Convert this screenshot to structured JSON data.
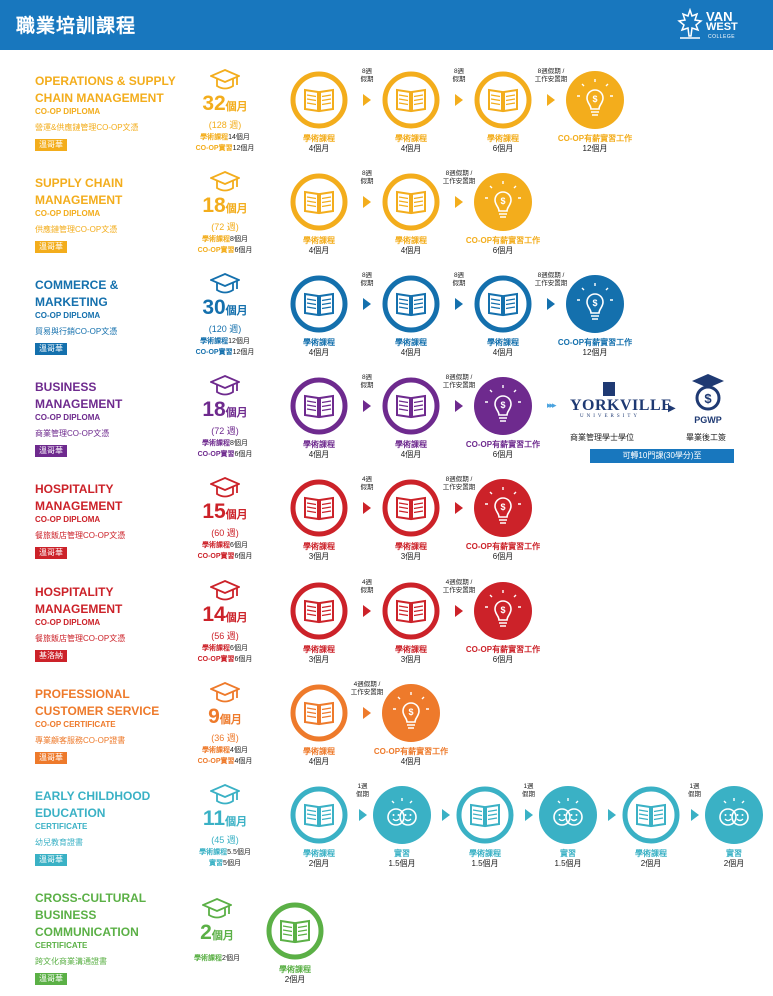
{
  "header": {
    "title": "職業培訓課程"
  },
  "logo": {
    "line1": "VAN",
    "line2": "WEST",
    "line3": "COLLEGE"
  },
  "programs": [
    {
      "name": "OPERATIONS & SUPPLY CHAIN MANAGEMENT",
      "sub1": "CO-OP DIPLOMA",
      "sub2": "營運&供應鏈管理CO-OP文憑",
      "location": "溫哥華",
      "color": "#f3ad1c",
      "months_num": "32",
      "months_unit": "個月",
      "weeks": "(128 週)",
      "split": [
        [
          "學術課程",
          "14個月"
        ],
        [
          "CO-OP實習",
          "12個月"
        ]
      ],
      "nodes": [
        {
          "type": "book",
          "label": "學術課程",
          "dur": "4個月"
        },
        {
          "type": "book",
          "label": "學術課程",
          "dur": "4個月"
        },
        {
          "type": "book",
          "label": "學術課程",
          "dur": "6個月"
        },
        {
          "type": "bulb",
          "label": "CO-OP有薪實習工作",
          "dur": "12個月"
        }
      ],
      "breaks": [
        "8週\n假期",
        "8週\n假期",
        "8週假期 /\n工作安置期"
      ]
    },
    {
      "name": "SUPPLY CHAIN MANAGEMENT",
      "sub1": "CO-OP DIPLOMA",
      "sub2": "供應鏈管理CO-OP文憑",
      "location": "溫哥華",
      "color": "#f3ad1c",
      "months_num": "18",
      "months_unit": "個月",
      "weeks": "(72 週)",
      "split": [
        [
          "學術課程",
          "8個月"
        ],
        [
          "CO-OP實習",
          "6個月"
        ]
      ],
      "nodes": [
        {
          "type": "book",
          "label": "學術課程",
          "dur": "4個月"
        },
        {
          "type": "book",
          "label": "學術課程",
          "dur": "4個月"
        },
        {
          "type": "bulb",
          "label": "CO-OP有薪實習工作",
          "dur": "6個月"
        }
      ],
      "breaks": [
        "8週\n假期",
        "8週假期 /\n工作安置期"
      ]
    },
    {
      "name": "COMMERCE & MARKETING",
      "sub1": "CO-OP DIPLOMA",
      "sub2": "貿易與行銷CO-OP文憑",
      "location": "溫哥華",
      "color": "#1470ad",
      "months_num": "30",
      "months_unit": "個月",
      "weeks": "(120 週)",
      "split": [
        [
          "學術課程",
          "12個月"
        ],
        [
          "CO-OP實習",
          "12個月"
        ]
      ],
      "nodes": [
        {
          "type": "book",
          "label": "學術課程",
          "dur": "4個月"
        },
        {
          "type": "book",
          "label": "學術課程",
          "dur": "4個月"
        },
        {
          "type": "book",
          "label": "學術課程",
          "dur": "4個月"
        },
        {
          "type": "bulb",
          "label": "CO-OP有薪實習工作",
          "dur": "12個月"
        }
      ],
      "breaks": [
        "8週\n假期",
        "8週\n假期",
        "8週假期 /\n工作安置期"
      ]
    },
    {
      "name": "BUSINESS MANAGEMENT",
      "sub1": "CO-OP DIPLOMA",
      "sub2": "商業管理CO-OP文憑",
      "location": "溫哥華",
      "color": "#6e2a8e",
      "months_num": "18",
      "months_unit": "個月",
      "weeks": "(72 週)",
      "split": [
        [
          "學術課程",
          "8個月"
        ],
        [
          "CO-OP實習",
          "6個月"
        ]
      ],
      "nodes": [
        {
          "type": "book",
          "label": "學術課程",
          "dur": "4個月"
        },
        {
          "type": "book",
          "label": "學術課程",
          "dur": "4個月"
        },
        {
          "type": "bulb",
          "label": "CO-OP有薪實習工作",
          "dur": "6個月"
        }
      ],
      "breaks": [
        "8週\n假期",
        "8週假期 /\n工作安置期"
      ]
    },
    {
      "name": "HOSPITALITY MANAGEMENT",
      "sub1": "CO-OP DIPLOMA",
      "sub2": "餐旅飯店管理CO-OP文憑",
      "location": "溫哥華",
      "color": "#cc2229",
      "months_num": "15",
      "months_unit": "個月",
      "weeks": "(60 週)",
      "split": [
        [
          "學術課程",
          "6個月"
        ],
        [
          "CO-OP實習",
          "6個月"
        ]
      ],
      "nodes": [
        {
          "type": "book",
          "label": "學術課程",
          "dur": "3個月"
        },
        {
          "type": "book",
          "label": "學術課程",
          "dur": "3個月"
        },
        {
          "type": "bulb",
          "label": "CO-OP有薪實習工作",
          "dur": "6個月"
        }
      ],
      "breaks": [
        "4週\n假期",
        "8週假期 /\n工作安置期"
      ]
    },
    {
      "name": "HOSPITALITY MANAGEMENT",
      "sub1": "CO-OP DIPLOMA",
      "sub2": "餐旅飯店管理CO-OP文憑",
      "location": "基洛納",
      "color": "#cc2229",
      "months_num": "14",
      "months_unit": "個月",
      "weeks": "(56 週)",
      "split": [
        [
          "學術課程",
          "6個月"
        ],
        [
          "CO-OP實習",
          "6個月"
        ]
      ],
      "nodes": [
        {
          "type": "book",
          "label": "學術課程",
          "dur": "3個月"
        },
        {
          "type": "book",
          "label": "學術課程",
          "dur": "3個月"
        },
        {
          "type": "bulb",
          "label": "CO-OP有薪實習工作",
          "dur": "6個月"
        }
      ],
      "breaks": [
        "4週\n假期",
        "4週假期 /\n工作安置期"
      ]
    },
    {
      "name": "PROFESSIONAL CUSTOMER SERVICE",
      "sub1": "CO-OP CERTIFICATE",
      "sub2": "專業顧客服務CO-OP證書",
      "location": "溫哥華",
      "color": "#ee7a2b",
      "months_num": "9",
      "months_unit": "個月",
      "weeks": "(36 週)",
      "split": [
        [
          "學術課程",
          "4個月"
        ],
        [
          "CO-OP實習",
          "4個月"
        ]
      ],
      "nodes": [
        {
          "type": "book",
          "label": "學術課程",
          "dur": "4個月"
        },
        {
          "type": "bulb",
          "label": "CO-OP有薪實習工作",
          "dur": "4個月"
        }
      ],
      "breaks": [
        "4週假期 /\n工作安置期"
      ]
    },
    {
      "name": "EARLY CHILDHOOD EDUCATION",
      "sub1": "CERTIFICATE",
      "sub2": "幼兒教育證書",
      "location": "溫哥華",
      "color": "#3ab1c5",
      "months_num": "11",
      "months_unit": "個月",
      "weeks": "(45 週)",
      "split": [
        [
          "學術課程",
          "5.5個月"
        ],
        [
          "實習",
          "5個月"
        ]
      ],
      "nodes": [
        {
          "type": "book",
          "label": "學術課程",
          "dur": "2個月"
        },
        {
          "type": "smile",
          "label": "實習",
          "dur": "1.5個月"
        },
        {
          "type": "book",
          "label": "學術課程",
          "dur": "1.5個月"
        },
        {
          "type": "smile",
          "label": "實習",
          "dur": "1.5個月"
        },
        {
          "type": "book",
          "label": "學術課程",
          "dur": "2個月"
        },
        {
          "type": "smile",
          "label": "實習",
          "dur": "2個月"
        }
      ],
      "breaks": [
        "1週\n假期",
        "",
        "1週\n假期",
        "",
        "1週\n假期"
      ]
    },
    {
      "name": "CROSS-CULTURAL BUSINESS COMMUNICATION",
      "sub1": "CERTIFICATE",
      "sub2": "跨文化商業溝通證書",
      "location": "溫哥華",
      "color": "#5bb046",
      "months_num": "2",
      "months_unit": "個月",
      "weeks": "",
      "split": [
        [
          "學術課程",
          "2個月"
        ]
      ],
      "nodes": [
        {
          "type": "book",
          "label": "學術課程",
          "dur": "2個月"
        }
      ],
      "breaks": []
    }
  ],
  "business_extra": {
    "university": "YORKVILLE",
    "university_sub": "UNIVERSITY",
    "degree": "商業管理學士學位",
    "pgwp": "PGWP",
    "pgwp_label": "畢業後工簽",
    "transfer": "可轉10門課(30學分)至"
  }
}
